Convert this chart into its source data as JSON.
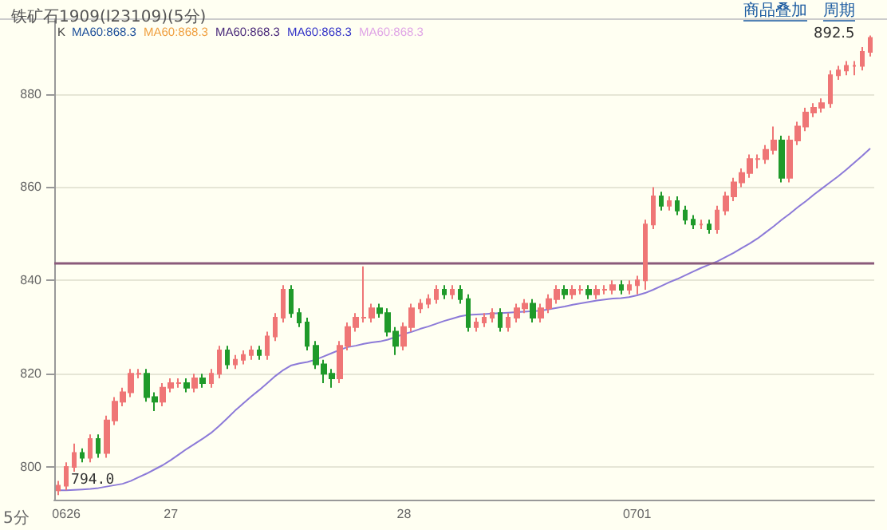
{
  "chart_data": {
    "type": "candlestick",
    "title": "铁矿石1909(I23109)(5分)",
    "categories": [
      null,
      "0626",
      null,
      null,
      null,
      null,
      null,
      null,
      null,
      null,
      null,
      null,
      null,
      null,
      "27",
      null,
      null,
      null,
      null,
      null,
      null,
      null,
      null,
      null,
      null,
      null,
      null,
      null,
      null,
      null,
      null,
      null,
      null,
      null,
      null,
      null,
      null,
      null,
      null,
      null,
      null,
      null,
      null,
      "28",
      null,
      null,
      null,
      null,
      null,
      null,
      null,
      null,
      null,
      null,
      null,
      null,
      null,
      null,
      null,
      null,
      null,
      null,
      null,
      null,
      null,
      null,
      null,
      null,
      null,
      null,
      null,
      null,
      "0701",
      null,
      null,
      null,
      null,
      null,
      null,
      null,
      null,
      null,
      null,
      null,
      null,
      null,
      null,
      null,
      null,
      null,
      null,
      null,
      null,
      null,
      null,
      null,
      null,
      null,
      null,
      null,
      null,
      null
    ],
    "ohlc": [
      [
        795,
        797,
        794,
        796
      ],
      [
        796,
        801,
        795,
        800
      ],
      [
        800,
        805,
        799,
        803
      ],
      [
        803,
        804,
        801,
        802
      ],
      [
        802,
        807,
        801,
        806
      ],
      [
        806,
        807,
        802,
        803
      ],
      [
        803,
        811,
        802,
        810
      ],
      [
        810,
        815,
        809,
        814
      ],
      [
        814,
        817,
        813,
        816
      ],
      [
        816,
        821,
        815,
        820
      ],
      [
        820,
        821,
        819,
        820
      ],
      [
        820,
        821,
        814,
        815
      ],
      [
        815,
        816,
        812,
        814
      ],
      [
        814,
        818,
        813,
        817
      ],
      [
        817,
        819,
        816,
        818
      ],
      [
        818,
        819,
        817,
        818
      ],
      [
        818,
        819,
        816,
        817
      ],
      [
        817,
        820,
        816,
        819
      ],
      [
        819,
        820,
        817,
        818
      ],
      [
        818,
        821,
        817,
        820
      ],
      [
        820,
        826,
        819,
        825
      ],
      [
        825,
        826,
        821,
        822
      ],
      [
        822,
        824,
        821,
        823
      ],
      [
        823,
        825,
        822,
        824
      ],
      [
        824,
        826,
        823,
        825
      ],
      [
        825,
        826,
        823,
        824
      ],
      [
        824,
        829,
        823,
        828
      ],
      [
        828,
        833,
        827,
        832
      ],
      [
        832,
        839,
        831,
        838
      ],
      [
        838,
        839,
        832,
        833
      ],
      [
        833,
        834,
        830,
        831
      ],
      [
        831,
        832,
        825,
        826
      ],
      [
        826,
        827,
        821,
        822
      ],
      [
        822,
        823,
        818,
        820
      ],
      [
        820,
        821,
        817,
        819
      ],
      [
        819,
        827,
        818,
        826
      ],
      [
        826,
        831,
        825,
        830
      ],
      [
        830,
        833,
        829,
        832
      ],
      [
        832,
        843,
        831,
        832
      ],
      [
        832,
        835,
        831,
        834
      ],
      [
        834,
        835,
        832,
        833
      ],
      [
        833,
        834,
        828,
        829
      ],
      [
        829,
        830,
        824,
        826
      ],
      [
        826,
        831,
        825,
        830
      ],
      [
        830,
        835,
        829,
        834
      ],
      [
        834,
        836,
        833,
        835
      ],
      [
        835,
        837,
        834,
        836
      ],
      [
        836,
        839,
        835,
        838
      ],
      [
        838,
        839,
        836,
        837
      ],
      [
        837,
        839,
        836,
        838
      ],
      [
        838,
        839,
        835,
        836
      ],
      [
        836,
        837,
        829,
        830
      ],
      [
        830,
        832,
        829,
        831
      ],
      [
        831,
        833,
        830,
        832
      ],
      [
        832,
        834,
        831,
        833
      ],
      [
        833,
        834,
        829,
        830
      ],
      [
        830,
        833,
        829,
        832
      ],
      [
        832,
        835,
        831,
        834
      ],
      [
        834,
        836,
        833,
        835
      ],
      [
        835,
        836,
        831,
        832
      ],
      [
        832,
        835,
        831,
        834
      ],
      [
        834,
        837,
        833,
        836
      ],
      [
        836,
        839,
        835,
        838
      ],
      [
        838,
        839,
        836,
        837
      ],
      [
        837,
        839,
        836,
        838
      ],
      [
        838,
        839,
        837,
        838
      ],
      [
        838,
        839,
        836,
        837
      ],
      [
        837,
        839,
        836,
        838
      ],
      [
        838,
        839,
        837,
        838
      ],
      [
        838,
        840,
        837,
        839
      ],
      [
        839,
        840,
        837,
        838
      ],
      [
        838,
        840,
        837,
        839
      ],
      [
        839,
        841,
        837,
        840
      ],
      [
        840,
        853,
        838,
        852
      ],
      [
        852,
        860,
        851,
        858
      ],
      [
        858,
        859,
        855,
        856
      ],
      [
        856,
        858,
        855,
        857
      ],
      [
        857,
        858,
        854,
        855
      ],
      [
        855,
        856,
        852,
        853
      ],
      [
        853,
        854,
        851,
        852
      ],
      [
        852,
        853,
        851,
        852
      ],
      [
        852,
        853,
        850,
        851
      ],
      [
        851,
        856,
        850,
        855
      ],
      [
        855,
        859,
        854,
        858
      ],
      [
        858,
        862,
        857,
        861
      ],
      [
        861,
        864,
        860,
        863
      ],
      [
        863,
        867,
        862,
        866
      ],
      [
        866,
        867,
        864,
        866
      ],
      [
        866,
        869,
        865,
        868
      ],
      [
        868,
        873,
        867,
        870
      ],
      [
        870,
        871,
        861,
        862
      ],
      [
        862,
        871,
        861,
        870
      ],
      [
        870,
        874,
        869,
        873
      ],
      [
        873,
        877,
        872,
        876
      ],
      [
        876,
        878,
        875,
        877
      ],
      [
        877,
        879,
        876,
        878
      ],
      [
        878,
        885,
        877,
        884
      ],
      [
        884,
        886,
        883,
        885
      ],
      [
        885,
        887,
        884,
        886
      ],
      [
        886,
        887,
        884,
        886
      ],
      [
        886,
        890,
        885,
        889
      ],
      [
        889,
        892.5,
        888,
        892
      ]
    ],
    "colors": [
      "#ef7676",
      "#ef7676",
      "#ef7676",
      "#1f9a2a",
      "#ef7676",
      "#1f9a2a",
      "#ef7676",
      "#ef7676",
      "#ef7676",
      "#ef7676",
      "#ef7676",
      "#1f9a2a",
      "#1f9a2a",
      "#ef7676",
      "#ef7676",
      "#ef7676",
      "#1f9a2a",
      "#ef7676",
      "#1f9a2a",
      "#ef7676",
      "#ef7676",
      "#1f9a2a",
      "#ef7676",
      "#ef7676",
      "#ef7676",
      "#1f9a2a",
      "#ef7676",
      "#ef7676",
      "#ef7676",
      "#1f9a2a",
      "#1f9a2a",
      "#1f9a2a",
      "#1f9a2a",
      "#1f9a2a",
      "#1f9a2a",
      "#ef7676",
      "#ef7676",
      "#ef7676",
      "#ef7676",
      "#ef7676",
      "#1f9a2a",
      "#1f9a2a",
      "#1f9a2a",
      "#ef7676",
      "#ef7676",
      "#ef7676",
      "#ef7676",
      "#ef7676",
      "#1f9a2a",
      "#ef7676",
      "#1f9a2a",
      "#1f9a2a",
      "#ef7676",
      "#ef7676",
      "#ef7676",
      "#1f9a2a",
      "#ef7676",
      "#ef7676",
      "#ef7676",
      "#1f9a2a",
      "#ef7676",
      "#ef7676",
      "#ef7676",
      "#1f9a2a",
      "#ef7676",
      "#ef7676",
      "#1f9a2a",
      "#ef7676",
      "#ef7676",
      "#ef7676",
      "#1f9a2a",
      "#ef7676",
      "#ef7676",
      "#ef7676",
      "#ef7676",
      "#1f9a2a",
      "#ef7676",
      "#1f9a2a",
      "#1f9a2a",
      "#1f9a2a",
      "#ef7676",
      "#1f9a2a",
      "#ef7676",
      "#ef7676",
      "#ef7676",
      "#ef7676",
      "#ef7676",
      "#ef7676",
      "#ef7676",
      "#ef7676",
      "#1f9a2a",
      "#ef7676",
      "#ef7676",
      "#ef7676",
      "#ef7676",
      "#ef7676",
      "#ef7676",
      "#ef7676",
      "#ef7676",
      "#ef7676",
      "#ef7676",
      "#ef7676"
    ],
    "series": [
      {
        "type": "line",
        "color": "#8c7ad8",
        "values": [
          795.0,
          795.0,
          795.1,
          795.2,
          795.3,
          795.5,
          795.8,
          796.1,
          796.4,
          797.0,
          797.8,
          798.6,
          799.5,
          800.4,
          801.5,
          802.7,
          803.9,
          805.0,
          806.1,
          807.3,
          808.8,
          810.4,
          812.1,
          813.6,
          815.1,
          816.5,
          818.0,
          819.5,
          820.8,
          821.8,
          822.2,
          822.5,
          823.0,
          823.7,
          824.4,
          825.1,
          825.7,
          826.0,
          826.4,
          826.7,
          826.9,
          827.3,
          827.9,
          828.5,
          829.0,
          829.6,
          830.1,
          830.7,
          831.3,
          831.8,
          832.3,
          832.6,
          832.7,
          832.8,
          832.9,
          833.0,
          833.1,
          833.2,
          833.3,
          833.4,
          833.5,
          833.8,
          834.1,
          834.4,
          834.8,
          835.1,
          835.4,
          835.7,
          835.9,
          836.1,
          836.2,
          836.4,
          836.8,
          837.3,
          838.0,
          838.8,
          839.6,
          840.3,
          841.1,
          841.9,
          842.7,
          843.4,
          844.1,
          845.0,
          845.9,
          846.9,
          847.9,
          849.0,
          850.3,
          851.6,
          853.0,
          854.3,
          855.7,
          857.0,
          858.4,
          859.7,
          861.0,
          862.3,
          863.7,
          865.2,
          866.7,
          868.3
        ]
      }
    ],
    "ylim": [
      793,
      896
    ],
    "yticks": [
      800,
      820,
      840,
      860,
      880
    ],
    "grid": "y",
    "marker": "none",
    "line_style": "solid",
    "ref_lines": [
      {
        "axis": "y",
        "value": 843.8,
        "color": "#8a5a7a"
      }
    ],
    "annotations": [
      "K",
      "MA60:868.3",
      "MA60:868.3",
      "MA60:868.3",
      "MA60:868.3",
      "MA60:868.3",
      "商品叠加",
      "周期",
      "5分",
      "892.5",
      {
        "text": "794.0",
        "y": 794.0
      }
    ]
  }
}
